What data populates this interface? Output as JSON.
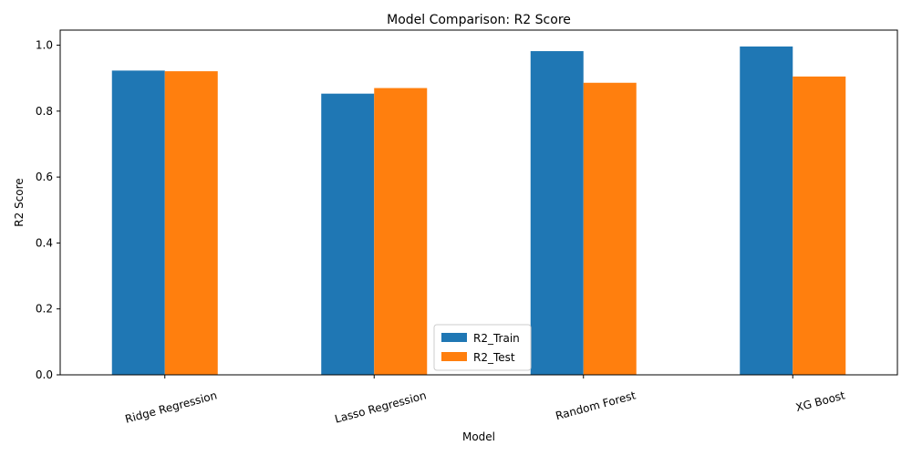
{
  "chart_data": {
    "type": "bar",
    "title": "Model Comparison: R2 Score",
    "xlabel": "Model",
    "ylabel": "R2 Score",
    "categories": [
      "Ridge Regression",
      "Lasso Regression",
      "Random Forest",
      "XG Boost"
    ],
    "series": [
      {
        "name": "R2_Train",
        "color": "#1f77b4",
        "values": [
          0.923,
          0.853,
          0.982,
          0.996
        ]
      },
      {
        "name": "R2_Test",
        "color": "#ff7f0e",
        "values": [
          0.921,
          0.87,
          0.886,
          0.905
        ]
      }
    ],
    "ylim": [
      0,
      1.0458
    ],
    "yticks": [
      0.0,
      0.2,
      0.4,
      0.6,
      0.8,
      1.0
    ],
    "ytick_labels": [
      "0.0",
      "0.2",
      "0.4",
      "0.6",
      "0.8",
      "1.0"
    ],
    "xtick_rotation_deg": 15,
    "grid": false,
    "legend_position": "lower-center"
  }
}
